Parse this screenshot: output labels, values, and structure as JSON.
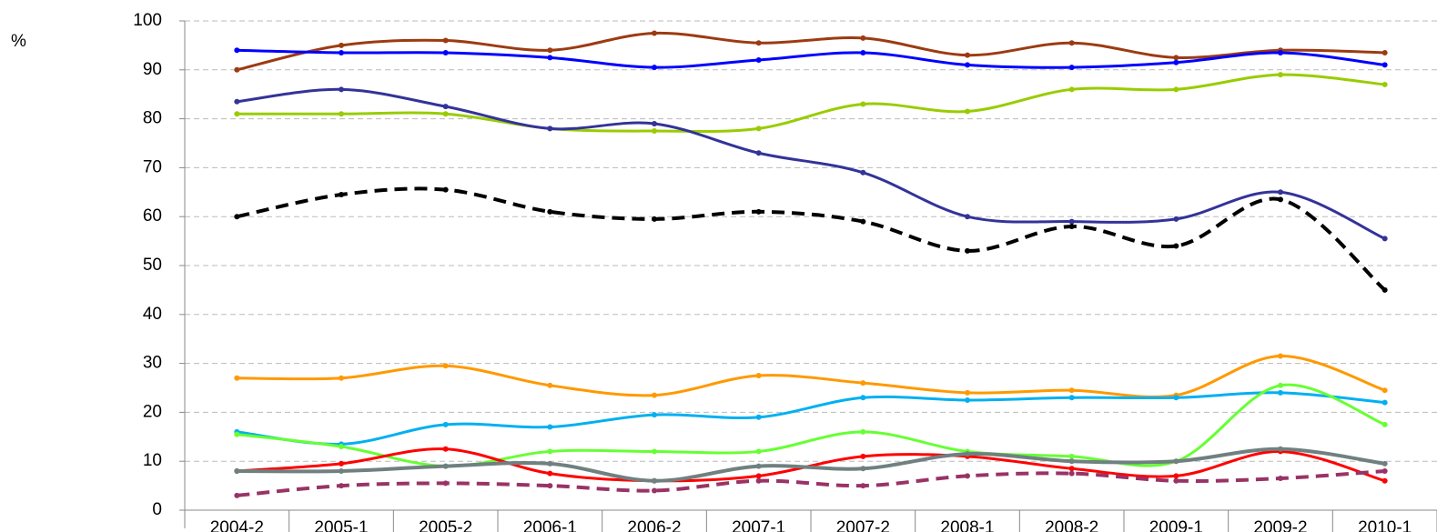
{
  "chart_data": {
    "type": "line",
    "y_label": "%",
    "categories": [
      "2004-2",
      "2005-1",
      "2005-2",
      "2006-1",
      "2006-2",
      "2007-1",
      "2007-2",
      "2008-1",
      "2008-2",
      "2009-1",
      "2009-2",
      "2010-1"
    ],
    "ylim": [
      0,
      100
    ],
    "yticks": [
      0,
      10,
      20,
      30,
      40,
      50,
      60,
      70,
      80,
      90,
      100
    ],
    "grid": true,
    "smooth": true,
    "series": [
      {
        "color": "#9c3b12",
        "style": "solid",
        "values": [
          90,
          95,
          96,
          94,
          97.5,
          95.5,
          96.5,
          93,
          95.5,
          92.5,
          94,
          93.5
        ]
      },
      {
        "color": "#0000ff",
        "style": "solid",
        "values": [
          94,
          93.5,
          93.5,
          92.5,
          90.5,
          92,
          93.5,
          91,
          90.5,
          91.5,
          93.5,
          91
        ]
      },
      {
        "color": "#99cc00",
        "style": "solid",
        "values": [
          81,
          81,
          81,
          78,
          77.5,
          78,
          83,
          81.5,
          86,
          86,
          89,
          87
        ]
      },
      {
        "color": "#333399",
        "style": "solid",
        "values": [
          83.5,
          86,
          82.5,
          78,
          79,
          73,
          69,
          60,
          59,
          59.5,
          65,
          55.5
        ]
      },
      {
        "color": "#000000",
        "style": "dashed",
        "values": [
          60,
          64.5,
          65.5,
          61,
          59.5,
          61,
          59,
          53,
          58,
          54,
          63.5,
          45
        ]
      },
      {
        "color": "#ff9900",
        "style": "solid",
        "values": [
          27,
          27,
          29.5,
          25.5,
          23.5,
          27.5,
          26,
          24,
          24.5,
          23.5,
          31.5,
          24.5
        ]
      },
      {
        "color": "#00b0f0",
        "style": "solid",
        "values": [
          16,
          13.5,
          17.5,
          17,
          19.5,
          19,
          23,
          22.5,
          23,
          23,
          24,
          22
        ]
      },
      {
        "color": "#66ff33",
        "style": "solid",
        "values": [
          15.5,
          13,
          9,
          12,
          12,
          12,
          16,
          12,
          11,
          10,
          25.5,
          17.5
        ]
      },
      {
        "color": "#ff0000",
        "style": "solid",
        "values": [
          8,
          9.5,
          12.5,
          7.5,
          6,
          7,
          11,
          11,
          8.5,
          7,
          12,
          6
        ]
      },
      {
        "color": "#708080",
        "style": "thick",
        "values": [
          8,
          8,
          9,
          9.5,
          6,
          9,
          8.5,
          11.5,
          10,
          10,
          12.5,
          9.5
        ]
      },
      {
        "color": "#993366",
        "style": "dashed",
        "values": [
          3,
          5,
          5.5,
          5,
          4,
          6,
          5,
          7,
          7.5,
          6,
          6.5,
          8
        ]
      }
    ]
  }
}
